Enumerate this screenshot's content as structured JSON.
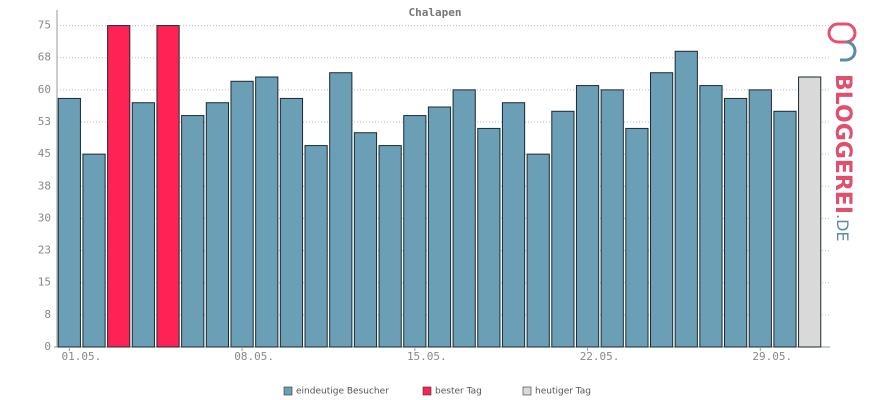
{
  "chart_data": {
    "type": "bar",
    "title": "Chalapen",
    "categories": [
      "01.05.",
      null,
      null,
      null,
      null,
      null,
      null,
      "08.05.",
      null,
      null,
      null,
      null,
      null,
      null,
      "15.05.",
      null,
      null,
      null,
      null,
      null,
      null,
      "22.05.",
      null,
      null,
      null,
      null,
      null,
      null,
      "29.05.",
      null,
      null
    ],
    "series": [
      {
        "name": "eindeutige Besucher",
        "color": "#6a9fb5",
        "values": [
          58,
          45,
          null,
          57,
          null,
          54,
          57,
          62,
          63,
          58,
          47,
          64,
          50,
          47,
          54,
          56,
          60,
          51,
          57,
          45,
          55,
          61,
          60,
          51,
          64,
          69,
          61,
          58,
          60,
          55,
          null
        ]
      },
      {
        "name": "bester Tag",
        "color": "#ff2255",
        "values": [
          null,
          null,
          75,
          null,
          75,
          null,
          null,
          null,
          null,
          null,
          null,
          null,
          null,
          null,
          null,
          null,
          null,
          null,
          null,
          null,
          null,
          null,
          null,
          null,
          null,
          null,
          null,
          null,
          null,
          null,
          null
        ]
      },
      {
        "name": "heutiger Tag",
        "color": "#d9d9d9",
        "values": [
          null,
          null,
          null,
          null,
          null,
          null,
          null,
          null,
          null,
          null,
          null,
          null,
          null,
          null,
          null,
          null,
          null,
          null,
          null,
          null,
          null,
          null,
          null,
          null,
          null,
          null,
          null,
          null,
          null,
          null,
          63
        ]
      }
    ],
    "ylim": [
      0,
      77.7
    ],
    "yticks": [
      0,
      {
        "value": 7.5,
        "label": "8"
      },
      15,
      {
        "value": 22.5,
        "label": "23"
      },
      30,
      {
        "value": 37.5,
        "label": "38"
      },
      45,
      {
        "value": 52.5,
        "label": "53"
      },
      60,
      {
        "value": 67.5,
        "label": "68"
      },
      75
    ],
    "grid": true
  },
  "branding": {
    "name": "BLOGGEREI",
    "tld": ".DE"
  }
}
